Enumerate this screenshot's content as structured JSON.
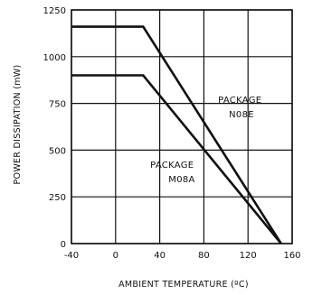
{
  "chart_data": {
    "type": "line",
    "title": "",
    "xlabel": "AMBIENT TEMPERATURE (ºC)",
    "ylabel": "POWER DISSIPATION (mW)",
    "xlim": [
      -40,
      160
    ],
    "ylim": [
      0,
      1250
    ],
    "xticks": [
      -40,
      0,
      40,
      80,
      120,
      160
    ],
    "yticks": [
      0,
      250,
      500,
      750,
      1000,
      1250
    ],
    "xtick_labels": [
      "-40",
      "0",
      "40",
      "80",
      "120",
      "160"
    ],
    "ytick_labels": [
      "0",
      "250",
      "500",
      "750",
      "1000",
      "1250"
    ],
    "grid": true,
    "series": [
      {
        "name": "PACKAGE N08E",
        "x": [
          -40,
          25,
          150
        ],
        "y": [
          1160,
          1160,
          0
        ]
      },
      {
        "name": "PACKAGE M08A",
        "x": [
          -40,
          25,
          150
        ],
        "y": [
          900,
          900,
          0
        ]
      }
    ],
    "annotations": [
      {
        "lines": [
          "PACKAGE",
          "N08E"
        ],
        "series": "PACKAGE N08E"
      },
      {
        "lines": [
          "PACKAGE",
          "M08A"
        ],
        "series": "PACKAGE M08A"
      }
    ]
  }
}
